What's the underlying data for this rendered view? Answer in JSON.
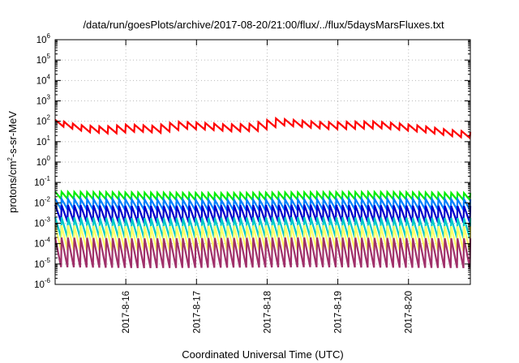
{
  "chart_data": {
    "type": "line",
    "title": "/data/run/goesPlots/archive/2017-08-20/21:00/flux/../flux/5daysMarsFluxes.txt",
    "xlabel": "Coordinated Universal Time (UTC)",
    "ylabel_parts": [
      "protons/cm",
      "2",
      "-s-sr-MeV"
    ],
    "y_scale": "log",
    "ylim": [
      1e-06,
      1000000.0
    ],
    "y_ticks": [
      {
        "base": "10",
        "exp": "6"
      },
      {
        "base": "10",
        "exp": "5"
      },
      {
        "base": "10",
        "exp": "4"
      },
      {
        "base": "10",
        "exp": "3"
      },
      {
        "base": "10",
        "exp": "2"
      },
      {
        "base": "10",
        "exp": "1"
      },
      {
        "base": "10",
        "exp": "0"
      },
      {
        "base": "10",
        "exp": "-1"
      },
      {
        "base": "10",
        "exp": "-2"
      },
      {
        "base": "10",
        "exp": "-3"
      },
      {
        "base": "10",
        "exp": "-4"
      },
      {
        "base": "10",
        "exp": "-5"
      },
      {
        "base": "10",
        "exp": "-6"
      }
    ],
    "x_range_days": [
      "2017-08-15",
      "2017-08-20"
    ],
    "x_ticks": [
      "2017-8-16",
      "2017-8-17",
      "2017-8-18",
      "2017-8-19",
      "2017-8-20"
    ],
    "grid": true,
    "legend": "none",
    "series": [
      {
        "color": "#ff0000",
        "teeth_per_day": 8,
        "peaks": [
          120,
          65,
          55,
          70,
          60,
          95,
          85,
          70,
          75,
          140,
          110,
          90,
          95,
          100,
          80,
          60,
          40,
          30
        ],
        "trough_ratio": 0.45
      },
      {
        "color": "#00ee00",
        "teeth_per_day": 11,
        "peaks": [
          0.035,
          0.032,
          0.03,
          0.033,
          0.034,
          0.03
        ],
        "trough_ratio": 0.45
      },
      {
        "color": "#0080ff",
        "teeth_per_day": 11,
        "peaks": [
          0.016,
          0.015,
          0.014,
          0.015,
          0.016,
          0.015
        ],
        "trough_ratio": 0.3
      },
      {
        "color": "#0000cc",
        "teeth_per_day": 11,
        "peaks": [
          0.008,
          0.007,
          0.0075,
          0.008,
          0.0075,
          0.007
        ],
        "trough_ratio": 0.15
      },
      {
        "color": "#00c8c8",
        "teeth_per_day": 11,
        "peaks": [
          0.002,
          0.0018,
          0.0019,
          0.002,
          0.0019,
          0.0018
        ],
        "trough_ratio": 0.1
      },
      {
        "color": "#ffff66",
        "teeth_per_day": 11,
        "peaks": [
          0.0008,
          0.0007,
          0.00075,
          0.0008,
          0.00075,
          0.0007
        ],
        "trough_ratio": 0.06
      },
      {
        "color": "#a0306a",
        "teeth_per_day": 11,
        "peaks": [
          0.0002,
          0.00018,
          0.00019,
          0.0002,
          0.00019,
          0.00018
        ],
        "trough_ratio": 0.035
      }
    ]
  }
}
